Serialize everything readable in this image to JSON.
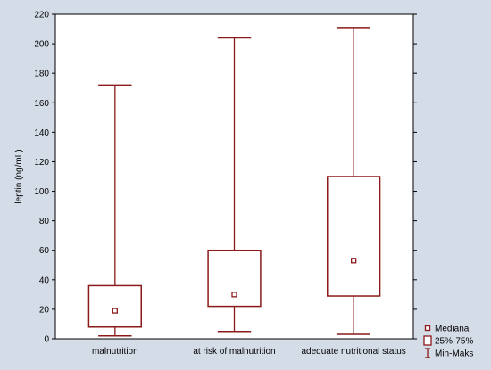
{
  "chart_data": {
    "type": "box",
    "ylabel": "leptin (ng/mL)",
    "xlabel": "",
    "ylim": [
      0,
      220
    ],
    "yticks": [
      0,
      20,
      40,
      60,
      80,
      100,
      120,
      140,
      160,
      180,
      200,
      220
    ],
    "grid": false,
    "legend_position": "bottom-right",
    "categories": [
      "malnutrition",
      "at risk of malnutrition",
      "adequate nutritional status"
    ],
    "boxes": [
      {
        "category": "malnutrition",
        "min": 2,
        "q1": 8,
        "median": 19,
        "q3": 36,
        "max": 172
      },
      {
        "category": "at risk of malnutrition",
        "min": 5,
        "q1": 22,
        "median": 30,
        "q3": 60,
        "max": 204
      },
      {
        "category": "adequate nutritional status",
        "min": 3,
        "q1": 29,
        "median": 53,
        "q3": 110,
        "max": 211
      }
    ],
    "legend": [
      "Mediana",
      "25%-75%",
      "Min-Maks"
    ],
    "colors": {
      "box": "#8b1a1a",
      "plot_bg": "#ffffff",
      "figure_bg": "#d4dce8"
    }
  }
}
